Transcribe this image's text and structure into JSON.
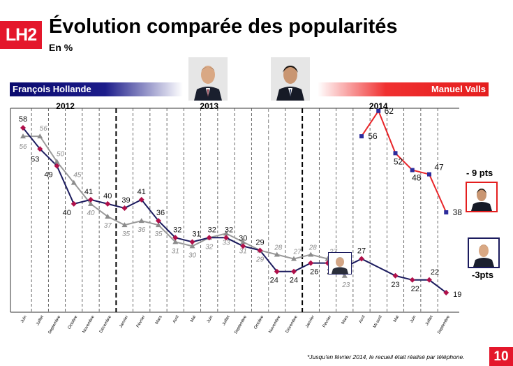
{
  "header": {
    "logo_text": "LH2",
    "title": "Évolution comparée des popularités",
    "subtitle": "En %"
  },
  "legend": {
    "left_name": "François Hollande",
    "right_name": "Manuel Valls"
  },
  "years": [
    "2012",
    "2013",
    "2014"
  ],
  "deltas": {
    "valls": "- 9 pts",
    "hollande": "-3pts"
  },
  "footnote": "*Jusqu'en février 2014, le recueil était réalisé par téléphone.",
  "page_number": "10",
  "colors": {
    "hollande": "#1b1b5e",
    "hollande_marker": "#b0104a",
    "mode_change": "#969696",
    "valls": "#e8262a",
    "valls_marker": "#2c2c9c",
    "accent_red": "#e4172b"
  },
  "chart_data": {
    "type": "line",
    "categories": [
      "Juin",
      "Juillet",
      "Septembre",
      "Octobre",
      "Novembre",
      "Décembre",
      "Janvier",
      "Février",
      "Mars",
      "Avril",
      "Mai",
      "Juin",
      "Juillet",
      "Septembre",
      "Octobre",
      "Novembre",
      "Décembre",
      "Janvier",
      "Février",
      "Mars",
      "Avril",
      "Mi-avril",
      "Mai",
      "Juin",
      "Juillet",
      "Septembre"
    ],
    "year_groups": [
      {
        "label": "2012",
        "start": 0,
        "end": 5
      },
      {
        "label": "2013",
        "start": 6,
        "end": 16
      },
      {
        "label": "2014",
        "start": 17,
        "end": 25
      }
    ],
    "series": [
      {
        "values": [
          58,
          53,
          49,
          40,
          41,
          40,
          39,
          41,
          36,
          32,
          31,
          32,
          32,
          30,
          29,
          24,
          24,
          26,
          26,
          25,
          27,
          null,
          23,
          22,
          22,
          19
        ]
      },
      {
        "values": [
          56,
          56,
          50,
          45,
          40,
          37,
          35,
          36,
          35,
          31,
          30,
          32,
          33,
          31,
          29,
          28,
          27,
          28,
          27,
          23,
          null,
          null,
          null,
          null,
          null,
          null
        ]
      },
      {
        "values": [
          null,
          null,
          null,
          null,
          null,
          null,
          null,
          null,
          null,
          null,
          null,
          null,
          null,
          null,
          null,
          null,
          null,
          null,
          null,
          null,
          56,
          62,
          52,
          48,
          47,
          38
        ]
      }
    ],
    "ylim": [
      15,
      65
    ],
    "xlabel": "",
    "ylabel": "",
    "grid": false
  }
}
